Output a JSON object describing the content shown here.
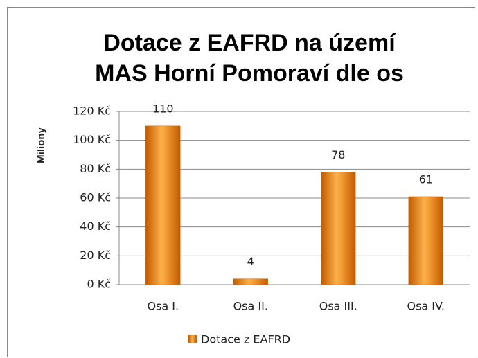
{
  "chart_data": {
    "type": "bar",
    "title": "Dotace z EAFRD na území MAS Horní Pomoraví dle os",
    "y_label": "Miliony",
    "categories": [
      "Osa I.",
      "Osa II.",
      "Osa III.",
      "Osa IV."
    ],
    "series": [
      {
        "name": "Dotace z EAFRD",
        "color": "#f39c2c",
        "values": [
          110,
          4,
          78,
          61
        ]
      }
    ],
    "ylim": [
      0,
      120
    ],
    "yticks": [
      {
        "value": 0,
        "label": "0 Kč"
      },
      {
        "value": 20,
        "label": "20 Kč"
      },
      {
        "value": 40,
        "label": "40 Kč"
      },
      {
        "value": 60,
        "label": "60 Kč"
      },
      {
        "value": 80,
        "label": "80 Kč"
      },
      {
        "value": 100,
        "label": "100 Kč"
      },
      {
        "value": 120,
        "label": "120 Kč"
      }
    ],
    "grid": true,
    "legend": "bottom"
  }
}
